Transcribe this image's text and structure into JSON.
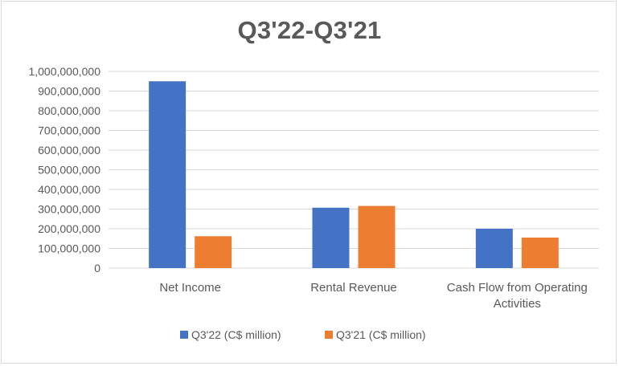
{
  "chart_data": {
    "type": "bar",
    "title": "Q3'22-Q3'21",
    "categories": [
      "Net Income",
      "Rental Revenue",
      "Cash Flow from Operating Activities"
    ],
    "category_lines": [
      [
        "Net Income"
      ],
      [
        "Rental Revenue"
      ],
      [
        "Cash Flow from Operating",
        "Activities"
      ]
    ],
    "series": [
      {
        "name": "Q3'22 (C$ million)",
        "color": "#4472c4",
        "values": [
          950000000,
          307000000,
          200000000
        ]
      },
      {
        "name": "Q3'21 (C$ million)",
        "color": "#ed7d31",
        "values": [
          162000000,
          316000000,
          155000000
        ]
      }
    ],
    "ylim": [
      0,
      1000000000
    ],
    "yticks": [
      "0",
      "100,000,000",
      "200,000,000",
      "300,000,000",
      "400,000,000",
      "500,000,000",
      "600,000,000",
      "700,000,000",
      "800,000,000",
      "900,000,000",
      "1,000,000,000"
    ],
    "grid": true,
    "legend_position": "bottom"
  }
}
